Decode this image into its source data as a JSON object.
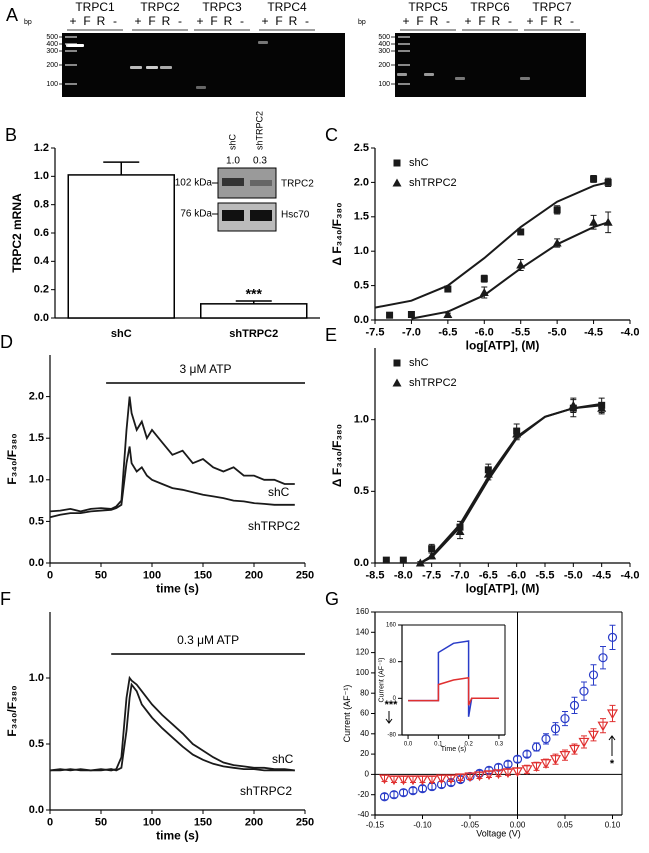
{
  "gel": {
    "panel": "A",
    "bp": "bp",
    "ladder": [
      "500",
      "400",
      "300",
      "200",
      "100"
    ],
    "lanes": [
      "+",
      "F",
      "R",
      "-"
    ],
    "left_groups": [
      "TRPC1",
      "TRPC2",
      "TRPC3",
      "TRPC4"
    ],
    "right_groups": [
      "TRPC5",
      "TRPC6",
      "TRPC7"
    ]
  },
  "chart_data": [
    {
      "type": "bar",
      "panel": "B",
      "ylabel": "TRPC2 mRNA",
      "categories": [
        "shC",
        "shTRPC2"
      ],
      "values": [
        1.01,
        0.1
      ],
      "errors": [
        0.09,
        0.02
      ],
      "color": "#ffffff",
      "edgecolor": "#000000",
      "annotation": "***",
      "ylim": [
        0,
        1.2
      ],
      "yticks": [
        {
          "value": 0,
          "label": "0.0"
        },
        0.2,
        0.4,
        0.6,
        0.8,
        {
          "value": 1,
          "label": "1.0"
        },
        1.2
      ],
      "inset": {
        "lanes": [
          "shC",
          "shTRPC2"
        ],
        "ratios": [
          "1.0",
          "0.3"
        ],
        "markers": [
          "102 kDa",
          "76 kDa"
        ],
        "proteins": [
          "TRPC2",
          "Hsc70"
        ]
      }
    },
    {
      "type": "scatter",
      "panel": "C",
      "xlabel": "log[ATP], (M)",
      "ylabel": "Δ F₃₄₀/F₃₈₀",
      "legend": "upper left",
      "xlim": [
        -7.5,
        -4.0
      ],
      "xticks": [
        -7.5,
        {
          "value": -7,
          "label": "-7.0"
        },
        -6.5,
        {
          "value": -6,
          "label": "-6.0"
        },
        -5.5,
        {
          "value": -5,
          "label": "-5.0"
        },
        -4.5,
        {
          "value": -4,
          "label": "-4.0"
        }
      ],
      "ylim": [
        0,
        2.5
      ],
      "yticks": [
        {
          "value": 0,
          "label": "0.0"
        },
        0.5,
        {
          "value": 1,
          "label": "1.0"
        },
        1.5,
        {
          "value": 2,
          "label": "2.0"
        },
        2.5
      ],
      "series": [
        {
          "name": "shC",
          "color": "#1a1a1a",
          "marker": "square",
          "x": [
            -7.3,
            -7.0,
            -6.5,
            -6.0,
            -5.5,
            -5.0,
            -4.5,
            -4.3
          ],
          "values": [
            0.07,
            0.08,
            0.45,
            0.6,
            1.28,
            1.6,
            2.05,
            2.0
          ],
          "errors": [
            0.02,
            0.02,
            0.03,
            0.05,
            0.03,
            0.06,
            0.05,
            0.06
          ],
          "fit": {
            "x": [
              -7.5,
              -7.0,
              -6.5,
              -6.0,
              -5.5,
              -5.0,
              -4.5,
              -4.3
            ],
            "values": [
              0.18,
              0.28,
              0.5,
              0.9,
              1.35,
              1.72,
              1.95,
              2.0
            ]
          }
        },
        {
          "name": "shTRPC2",
          "color": "#1a1a1a",
          "marker": "triangle",
          "x": [
            -6.5,
            -6.0,
            -5.5,
            -5.0,
            -4.5,
            -4.3
          ],
          "values": [
            0.08,
            0.4,
            0.8,
            1.12,
            1.42,
            1.42
          ],
          "errors": [
            0.02,
            0.08,
            0.08,
            0.06,
            0.1,
            0.15
          ],
          "fit": {
            "x": [
              -7.0,
              -6.5,
              -6.0,
              -5.5,
              -5.0,
              -4.5,
              -4.3
            ],
            "values": [
              0.02,
              0.12,
              0.36,
              0.75,
              1.1,
              1.35,
              1.42
            ]
          }
        }
      ]
    },
    {
      "type": "line",
      "panel": "D",
      "xlabel": "time (s)",
      "ylabel": "F₃₄₀/F₃₈₀",
      "stimulus": {
        "label": "3 μM ATP",
        "start": 55,
        "end": 250
      },
      "xlim": [
        0,
        250
      ],
      "xticks": [
        0,
        50,
        100,
        150,
        200,
        250
      ],
      "ylim": [
        0,
        2.5
      ],
      "yticks": [
        {
          "value": 0,
          "label": "0.0"
        },
        0.5,
        {
          "value": 1,
          "label": "1.0"
        },
        1.5,
        {
          "value": 2,
          "label": "2.0"
        }
      ],
      "x": [
        0,
        10,
        20,
        30,
        40,
        50,
        60,
        65,
        70,
        75,
        78,
        80,
        85,
        90,
        95,
        100,
        110,
        120,
        130,
        140,
        150,
        160,
        170,
        180,
        190,
        200,
        210,
        220,
        230,
        240
      ],
      "series": [
        {
          "name": "shC",
          "color": "#1a1a1a",
          "values": [
            0.62,
            0.63,
            0.65,
            0.62,
            0.65,
            0.66,
            0.65,
            0.68,
            0.75,
            1.6,
            2.0,
            1.8,
            1.6,
            1.7,
            1.5,
            1.6,
            1.45,
            1.3,
            1.35,
            1.2,
            1.25,
            1.15,
            1.1,
            1.15,
            1.05,
            1.05,
            1.0,
            1.0,
            0.95,
            0.95
          ]
        },
        {
          "name": "shTRPC2",
          "color": "#1a1a1a",
          "values": [
            0.55,
            0.58,
            0.6,
            0.6,
            0.62,
            0.63,
            0.64,
            0.66,
            0.7,
            1.2,
            1.4,
            1.2,
            1.1,
            1.15,
            1.05,
            1.0,
            0.95,
            0.9,
            0.88,
            0.85,
            0.82,
            0.8,
            0.78,
            0.75,
            0.74,
            0.72,
            0.71,
            0.7,
            0.7,
            0.7
          ]
        }
      ]
    },
    {
      "type": "scatter",
      "panel": "E",
      "xlabel": "log[ATP], (M)",
      "ylabel": "Δ F₃₄₀/F₃₈₀",
      "legend": "upper left",
      "xlim": [
        -8.5,
        -4.0
      ],
      "xticks": [
        -8.5,
        {
          "value": -8,
          "label": "-8.0"
        },
        -7.5,
        {
          "value": -7,
          "label": "-7.0"
        },
        -6.5,
        {
          "value": -6,
          "label": "-6.0"
        },
        -5.5,
        {
          "value": -5,
          "label": "-5.0"
        },
        -4.5,
        {
          "value": -4,
          "label": "-4.0"
        }
      ],
      "ylim": [
        0,
        1.5
      ],
      "yticks": [
        {
          "value": 0,
          "label": "0.0"
        },
        0.5,
        {
          "value": 1,
          "label": "1.0"
        }
      ],
      "series": [
        {
          "name": "shC",
          "color": "#1a1a1a",
          "marker": "square",
          "x": [
            -8.3,
            -8.0,
            -7.5,
            -7.0,
            -6.5,
            -6.0,
            -5.0,
            -4.5
          ],
          "values": [
            0.02,
            0.02,
            0.1,
            0.25,
            0.65,
            0.92,
            1.08,
            1.1
          ],
          "errors": [
            0.01,
            0.01,
            0.03,
            0.04,
            0.04,
            0.05,
            0.06,
            0.05
          ],
          "fit": {
            "x": [
              -7.7,
              -7.5,
              -7.0,
              -6.5,
              -6.0,
              -5.5,
              -5.0,
              -4.5
            ],
            "values": [
              0,
              0.05,
              0.27,
              0.6,
              0.88,
              1.02,
              1.08,
              1.1
            ]
          }
        },
        {
          "name": "shTRPC2",
          "color": "#1a1a1a",
          "marker": "triangle",
          "x": [
            -7.7,
            -7.5,
            -7.0,
            -6.5,
            -6.0,
            -5.0,
            -4.5
          ],
          "values": [
            0.0,
            0.05,
            0.22,
            0.62,
            0.9,
            1.1,
            1.08
          ],
          "errors": [
            0.01,
            0.02,
            0.05,
            0.04,
            0.04,
            0.05,
            0.04
          ],
          "fit": {
            "x": [
              -7.7,
              -7.5,
              -7.0,
              -6.5,
              -6.0,
              -5.5,
              -5.0,
              -4.5
            ],
            "values": [
              0,
              0.04,
              0.25,
              0.58,
              0.87,
              1.02,
              1.08,
              1.11
            ]
          }
        }
      ]
    },
    {
      "type": "line",
      "panel": "F",
      "xlabel": "time (s)",
      "ylabel": "F₃₄₀/F₃₈₀",
      "stimulus": {
        "label": "0.3 μM ATP",
        "start": 60,
        "end": 250
      },
      "xlim": [
        0,
        250
      ],
      "xticks": [
        0,
        50,
        100,
        150,
        200,
        250
      ],
      "ylim": [
        0,
        1.5
      ],
      "yticks": [
        {
          "value": 0,
          "label": "0.0"
        },
        0.5,
        {
          "value": 1,
          "label": "1.0"
        }
      ],
      "x": [
        0,
        10,
        20,
        30,
        40,
        50,
        60,
        65,
        70,
        75,
        78,
        80,
        85,
        90,
        100,
        110,
        120,
        130,
        140,
        150,
        160,
        170,
        180,
        190,
        200,
        210,
        220,
        230,
        240
      ],
      "series": [
        {
          "name": "shC",
          "color": "#1a1a1a",
          "values": [
            0.3,
            0.31,
            0.3,
            0.31,
            0.3,
            0.31,
            0.3,
            0.31,
            0.4,
            0.85,
            1.0,
            0.98,
            0.95,
            0.9,
            0.8,
            0.72,
            0.65,
            0.58,
            0.5,
            0.45,
            0.4,
            0.36,
            0.34,
            0.33,
            0.32,
            0.32,
            0.31,
            0.31,
            0.3
          ]
        },
        {
          "name": "shTRPC2",
          "color": "#1a1a1a",
          "values": [
            0.3,
            0.3,
            0.31,
            0.3,
            0.3,
            0.3,
            0.31,
            0.3,
            0.32,
            0.6,
            0.85,
            0.95,
            0.9,
            0.8,
            0.7,
            0.62,
            0.55,
            0.48,
            0.42,
            0.38,
            0.35,
            0.33,
            0.32,
            0.31,
            0.31,
            0.3,
            0.3,
            0.3,
            0.3
          ]
        }
      ]
    },
    {
      "type": "scatter",
      "panel": "G",
      "xlabel": "Voltage (V)",
      "ylabel": "Current (AF⁻¹)",
      "annotations": [
        "***",
        "*"
      ],
      "xlim": [
        -0.15,
        0.11
      ],
      "xticks": [
        -0.15,
        {
          "value": -0.1,
          "label": "-0.10"
        },
        -0.05,
        {
          "value": 0,
          "label": "0.00"
        },
        0.05,
        {
          "value": 0.1,
          "label": "0.10"
        }
      ],
      "ylim": [
        -40,
        160
      ],
      "yticks": [
        -40,
        -20,
        0,
        20,
        40,
        60,
        80,
        100,
        120,
        140,
        160
      ],
      "series": [
        {
          "color": "#2a3cc8",
          "marker": "circle",
          "x": [
            -0.14,
            -0.13,
            -0.12,
            -0.11,
            -0.1,
            -0.09,
            -0.08,
            -0.07,
            -0.06,
            -0.05,
            -0.04,
            -0.03,
            -0.02,
            -0.01,
            0,
            0.01,
            0.02,
            0.03,
            0.04,
            0.05,
            0.06,
            0.07,
            0.08,
            0.09,
            0.1
          ],
          "values": [
            -22,
            -20,
            -18,
            -16,
            -14,
            -12,
            -10,
            -8,
            -5,
            -2,
            1,
            4,
            7,
            10,
            15,
            20,
            27,
            35,
            45,
            55,
            68,
            82,
            98,
            115,
            135
          ],
          "errors": [
            3,
            3,
            3,
            3,
            3,
            3,
            3,
            3,
            3,
            3,
            3,
            3,
            3,
            3,
            3,
            3,
            4,
            5,
            6,
            7,
            8,
            9,
            10,
            11,
            12
          ]
        },
        {
          "color": "#e03030",
          "marker": "triangle-down",
          "x": [
            -0.14,
            -0.13,
            -0.12,
            -0.11,
            -0.1,
            -0.09,
            -0.08,
            -0.07,
            -0.06,
            -0.05,
            -0.04,
            -0.03,
            -0.02,
            -0.01,
            0,
            0.01,
            0.02,
            0.03,
            0.04,
            0.05,
            0.06,
            0.07,
            0.08,
            0.09,
            0.1
          ],
          "values": [
            -4,
            -5,
            -5,
            -5,
            -5,
            -5,
            -4,
            -4,
            -3,
            -2,
            -1,
            0,
            1,
            2,
            3,
            5,
            8,
            11,
            15,
            19,
            25,
            32,
            39,
            48,
            60
          ],
          "errors": [
            3,
            3,
            3,
            3,
            3,
            3,
            3,
            3,
            3,
            3,
            3,
            3,
            3,
            3,
            3,
            4,
            4,
            4,
            5,
            5,
            5,
            6,
            6,
            7,
            8
          ]
        }
      ],
      "inset": {
        "xlabel": "Time (s)",
        "ylabel": "Current (AF⁻¹)",
        "xlim": [
          -0.02,
          0.32
        ],
        "xticks": [
          {
            "value": 0,
            "label": "0.0"
          },
          0.1,
          0.2,
          0.3
        ],
        "ylim": [
          -80,
          160
        ],
        "yticks": [
          -80,
          0,
          80,
          160
        ],
        "series": [
          {
            "color": "#2a3cc8",
            "x": [
              0,
              0.1,
              0.1,
              0.15,
              0.2,
              0.2,
              0.21,
              0.25,
              0.3
            ],
            "values": [
              -5,
              -5,
              100,
              120,
              125,
              -40,
              0,
              0,
              0
            ]
          },
          {
            "color": "#e03030",
            "x": [
              0,
              0.1,
              0.1,
              0.15,
              0.2,
              0.2,
              0.21,
              0.25,
              0.3
            ],
            "values": [
              -5,
              -5,
              30,
              40,
              45,
              -15,
              0,
              0,
              0
            ]
          }
        ]
      }
    }
  ]
}
